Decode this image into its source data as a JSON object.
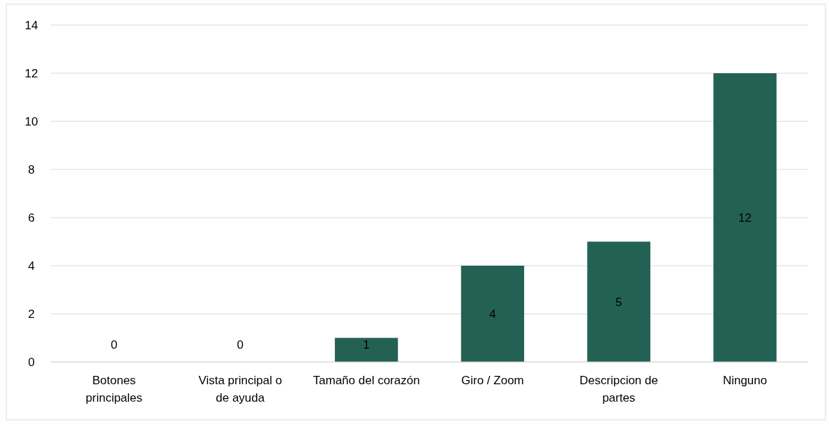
{
  "chart_data": {
    "type": "bar",
    "categories": [
      "Botones principales",
      "Vista principal o de ayuda",
      "Tamaño del corazón",
      "Giro / Zoom",
      "Descripcion de partes",
      "Ninguno"
    ],
    "values": [
      0,
      0,
      1,
      4,
      5,
      12
    ],
    "color": "#236154",
    "ylim": [
      0,
      14
    ],
    "yticks": [
      0,
      2,
      4,
      6,
      8,
      10,
      12,
      14
    ],
    "grid": "y",
    "data_labels": true
  }
}
